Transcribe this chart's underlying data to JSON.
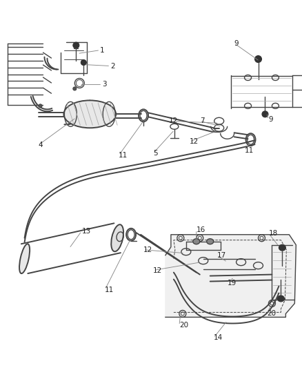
{
  "bg_color": "#ffffff",
  "line_color": "#444444",
  "fig_width": 4.39,
  "fig_height": 5.33,
  "dpi": 100,
  "label_fontsize": 7.5,
  "label_color": "#222222",
  "leader_color": "#888888"
}
